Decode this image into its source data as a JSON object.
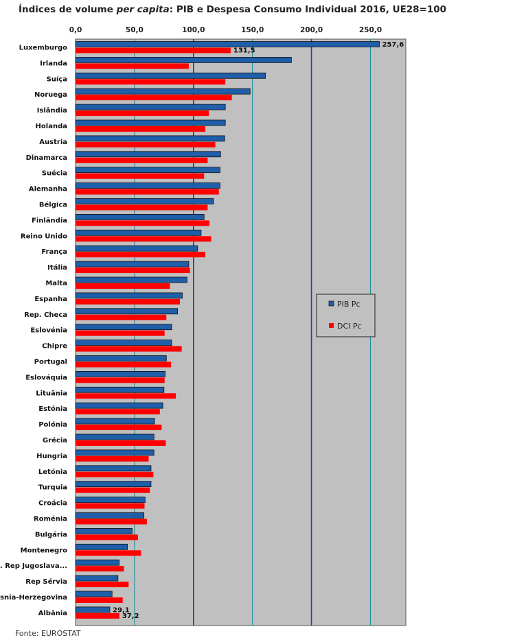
{
  "title": {
    "prefix": "Índices de volume ",
    "italic": "per capita",
    "suffix": ": PIB e Despesa Consumo Individual 2016, UE28=100"
  },
  "source": "Fonte: EUROSTAT",
  "colors": {
    "pib": "#1f5ea8",
    "dci": "#ff0000",
    "plot_background": "#c0c0c0",
    "gridline": "#1e8fa0",
    "gridline_strong": "#1f3f8f"
  },
  "chart_data": {
    "type": "bar",
    "orientation": "horizontal",
    "title": "Índices de volume per capita: PIB e Despesa Consumo Individual 2016, UE28=100",
    "xlim": [
      0,
      280
    ],
    "x_ticks": [
      "0,0",
      "50,0",
      "100,0",
      "150,0",
      "200,0",
      "250,0"
    ],
    "x_tick_values": [
      0,
      50,
      100,
      150,
      200,
      250
    ],
    "legend_position": "right-middle",
    "categories": [
      "Luxemburgo",
      "Irlanda",
      "Suíça",
      "Noruega",
      "Islândia",
      "Holanda",
      "Austria",
      "Dinamarca",
      "Suécia",
      "Alemanha",
      "Bélgica",
      "Finlândia",
      "Reino Unido",
      "França",
      "Itália",
      "Malta",
      "Espanha",
      "Rep. Checa",
      "Eslovénia",
      "Chipre",
      "Portugal",
      "Eslováquia",
      "Lituânia",
      "Estónia",
      "Polónia",
      "Grécia",
      "Hungria",
      "Letónia",
      "Turquia",
      "Croácia",
      "Roménia",
      "Bulgária",
      "Montenegro",
      "Ant. Rep Jugoslava...",
      "Rep Sérvia",
      "Bosnia-Herzegovina",
      "Albânia"
    ],
    "series": [
      {
        "name": "PIB Pc",
        "color_key": "pib",
        "values": [
          257.6,
          183,
          161,
          148,
          127,
          127,
          126.5,
          123,
          122.5,
          122.5,
          117,
          109,
          106.5,
          103.5,
          96,
          94.5,
          90.5,
          86.5,
          81.5,
          81.5,
          77,
          76,
          75,
          74,
          67,
          66.5,
          66.5,
          64,
          64,
          59,
          58,
          48,
          44,
          37,
          36,
          31,
          29.1
        ],
        "labels": [
          "257,6",
          "",
          "",
          "",
          "",
          "",
          "",
          "",
          "",
          "",
          "",
          "",
          "",
          "",
          "",
          "",
          "",
          "",
          "",
          "",
          "",
          "",
          "",
          "",
          "",
          "",
          "",
          "",
          "",
          "",
          "",
          "",
          "",
          "",
          "",
          "",
          "29,1"
        ]
      },
      {
        "name": "DCI Pc",
        "color_key": "dci",
        "values": [
          131.5,
          96,
          127,
          132.5,
          113,
          110,
          118.5,
          112,
          109,
          121.5,
          112,
          113.5,
          115,
          110,
          97,
          80,
          88.5,
          77,
          75.5,
          90,
          81,
          75.5,
          85,
          71.5,
          73,
          76.5,
          62,
          66,
          63,
          58.5,
          60.5,
          53,
          55.5,
          41,
          45,
          40,
          37.2
        ],
        "labels": [
          "131,5",
          "",
          "",
          "",
          "",
          "",
          "",
          "",
          "",
          "",
          "",
          "",
          "",
          "",
          "",
          "",
          "",
          "",
          "",
          "",
          "",
          "",
          "",
          "",
          "",
          "",
          "",
          "",
          "",
          "",
          "",
          "",
          "",
          "",
          "",
          "",
          "37,2"
        ]
      }
    ]
  }
}
